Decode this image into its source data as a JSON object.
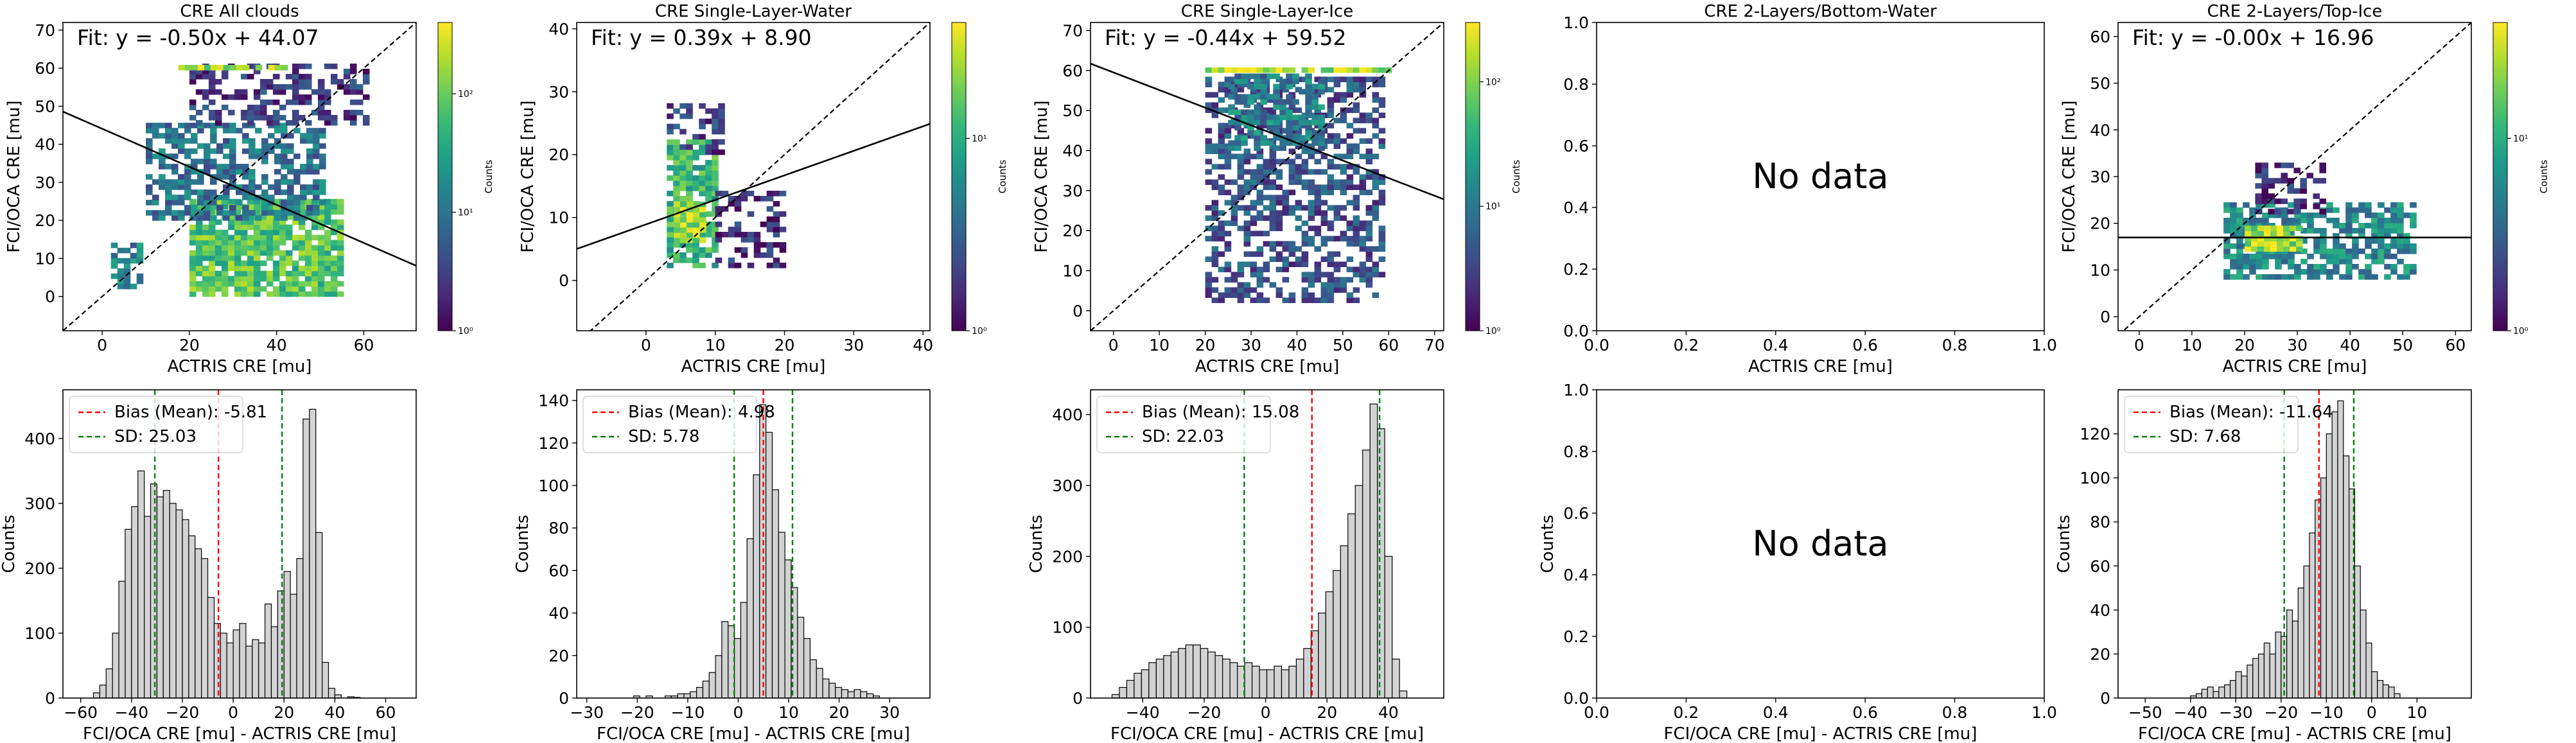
{
  "chart_data": [
    {
      "type": "heatmap",
      "title": "CRE All clouds",
      "xlabel": "ACTRIS CRE [mu]",
      "ylabel": "FCI/OCA CRE [mu]",
      "xlim": [
        -9,
        72
      ],
      "ylim": [
        -9,
        72
      ],
      "xticks": [
        0,
        20,
        40,
        60
      ],
      "yticks": [
        0,
        10,
        20,
        30,
        40,
        50,
        60,
        70
      ],
      "fit_label": "Fit: y = -0.50x + 44.07",
      "fit": {
        "slope": -0.5,
        "intercept": 44.07
      },
      "one_to_one": true,
      "colorbar": {
        "label": "Counts",
        "log": true,
        "min": 1,
        "max": 400,
        "ticks": [
          1,
          10,
          100
        ],
        "tick_labels": [
          "10⁰",
          "10¹",
          "10²"
        ]
      },
      "clusters": [
        {
          "x": [
            20,
            55
          ],
          "y": [
            0,
            25
          ],
          "density": 0.85
        },
        {
          "x": [
            10,
            50
          ],
          "y": [
            20,
            45
          ],
          "density": 0.45
        },
        {
          "x": [
            20,
            60
          ],
          "y": [
            45,
            60
          ],
          "density": 0.2
        },
        {
          "x": [
            2,
            8
          ],
          "y": [
            2,
            14
          ],
          "density": 0.5
        },
        {
          "x": [
            16,
            42
          ],
          "y": [
            59.5,
            60.5
          ],
          "density": 1.0
        }
      ]
    },
    {
      "type": "heatmap",
      "title": "CRE Single-Layer-Water",
      "xlabel": "ACTRIS CRE [mu]",
      "ylabel": "FCI/OCA CRE [mu]",
      "xlim": [
        -10,
        41
      ],
      "ylim": [
        -8,
        41
      ],
      "xticks": [
        0,
        10,
        20,
        30,
        40
      ],
      "yticks": [
        0,
        10,
        20,
        30,
        40
      ],
      "fit_label": "Fit: y = 0.39x + 8.90",
      "fit": {
        "slope": 0.39,
        "intercept": 8.9
      },
      "one_to_one": true,
      "colorbar": {
        "label": "Counts",
        "log": true,
        "min": 1,
        "max": 40,
        "ticks": [
          1,
          10
        ],
        "tick_labels": [
          "10⁰",
          "10¹"
        ]
      },
      "clusters": [
        {
          "x": [
            3,
            10
          ],
          "y": [
            2,
            22
          ],
          "density": 0.75
        },
        {
          "x": [
            4,
            8
          ],
          "y": [
            6,
            12
          ],
          "density": 1.0
        },
        {
          "x": [
            3,
            11
          ],
          "y": [
            20,
            28
          ],
          "density": 0.2
        },
        {
          "x": [
            10,
            20
          ],
          "y": [
            2,
            14
          ],
          "density": 0.15
        }
      ]
    },
    {
      "type": "heatmap",
      "title": "CRE Single-Layer-Ice",
      "xlabel": "ACTRIS CRE [mu]",
      "ylabel": "FCI/OCA CRE [mu]",
      "xlim": [
        -5,
        72
      ],
      "ylim": [
        -5,
        72
      ],
      "xticks": [
        0,
        10,
        20,
        30,
        40,
        50,
        60,
        70
      ],
      "yticks": [
        0,
        10,
        20,
        30,
        40,
        50,
        60,
        70
      ],
      "fit_label": "Fit: y = -0.44x + 59.52",
      "fit": {
        "slope": -0.44,
        "intercept": 59.52
      },
      "one_to_one": true,
      "colorbar": {
        "label": "Counts",
        "log": true,
        "min": 1,
        "max": 300,
        "ticks": [
          1,
          10,
          100
        ],
        "tick_labels": [
          "10⁰",
          "10¹",
          "10²"
        ]
      },
      "clusters": [
        {
          "x": [
            20,
            58
          ],
          "y": [
            2,
            58
          ],
          "density": 0.3
        },
        {
          "x": [
            25,
            45
          ],
          "y": [
            40,
            58
          ],
          "density": 0.5
        },
        {
          "x": [
            20,
            60
          ],
          "y": [
            59.5,
            60.5
          ],
          "density": 1.0
        }
      ]
    },
    {
      "type": "empty",
      "title": "CRE 2-Layers/Bottom-Water",
      "xlabel": "ACTRIS CRE [mu]",
      "ylabel": "",
      "xlim": [
        0,
        1
      ],
      "ylim": [
        0,
        1
      ],
      "xticks": [
        0.0,
        0.2,
        0.4,
        0.6,
        0.8,
        1.0
      ],
      "yticks": [
        0.0,
        0.2,
        0.4,
        0.6,
        0.8,
        1.0
      ],
      "message": "No data"
    },
    {
      "type": "heatmap",
      "title": "CRE 2-Layers/Top-Ice",
      "xlabel": "ACTRIS CRE [mu]",
      "ylabel": "FCI/OCA CRE [mu]",
      "xlim": [
        -4,
        63
      ],
      "ylim": [
        -3,
        63
      ],
      "xticks": [
        0,
        10,
        20,
        30,
        40,
        50,
        60
      ],
      "yticks": [
        0,
        10,
        20,
        30,
        40,
        50,
        60
      ],
      "fit_label": "Fit: y = -0.00x + 16.96",
      "fit": {
        "slope": 0.0,
        "intercept": 16.96
      },
      "one_to_one": true,
      "colorbar": {
        "label": "Counts",
        "log": true,
        "min": 1,
        "max": 40,
        "ticks": [
          1,
          10
        ],
        "tick_labels": [
          "10⁰",
          "10¹"
        ]
      },
      "clusters": [
        {
          "x": [
            16,
            52
          ],
          "y": [
            8,
            24
          ],
          "density": 0.55
        },
        {
          "x": [
            20,
            30
          ],
          "y": [
            14,
            19
          ],
          "density": 1.0
        },
        {
          "x": [
            22,
            35
          ],
          "y": [
            22,
            32
          ],
          "density": 0.15
        }
      ]
    },
    {
      "type": "bar",
      "subtype": "histogram",
      "title": "",
      "xlabel": "FCI/OCA CRE [mu] - ACTRIS CRE [mu]",
      "ylabel": "Counts",
      "xlim": [
        -67,
        72
      ],
      "ylim": [
        0,
        475
      ],
      "xticks": [
        -60,
        -40,
        -20,
        0,
        20,
        40,
        60
      ],
      "yticks": [
        0,
        100,
        200,
        300,
        400
      ],
      "bin_start": -55,
      "bin_width": 2.5,
      "counts": [
        8,
        20,
        45,
        100,
        180,
        260,
        295,
        350,
        280,
        330,
        310,
        320,
        300,
        290,
        275,
        250,
        230,
        215,
        155,
        115,
        100,
        85,
        105,
        115,
        80,
        90,
        85,
        145,
        110,
        165,
        195,
        160,
        215,
        430,
        445,
        255,
        55,
        15,
        5,
        0,
        2,
        1
      ],
      "bias": -5.81,
      "bias_label": "Bias (Mean): -5.81",
      "sd": 25.03,
      "sd_label": "SD: 25.03"
    },
    {
      "type": "bar",
      "subtype": "histogram",
      "title": "",
      "xlabel": "FCI/OCA CRE [mu] - ACTRIS CRE [mu]",
      "ylabel": "Counts",
      "xlim": [
        -32,
        38
      ],
      "ylim": [
        0,
        145
      ],
      "xticks": [
        -30,
        -20,
        -10,
        0,
        10,
        20,
        30
      ],
      "yticks": [
        0,
        20,
        40,
        60,
        80,
        100,
        120,
        140
      ],
      "bin_start": -22,
      "bin_width": 1.25,
      "counts": [
        0,
        1,
        0,
        1,
        0,
        0,
        1,
        1,
        2,
        2,
        3,
        5,
        8,
        12,
        20,
        36,
        34,
        28,
        45,
        75,
        105,
        138,
        125,
        98,
        78,
        65,
        52,
        38,
        28,
        18,
        14,
        9,
        7,
        5,
        4,
        3,
        4,
        3,
        2,
        1
      ],
      "bias": 4.98,
      "bias_label": "Bias (Mean): 4.98",
      "sd": 5.78,
      "sd_label": "SD: 5.78"
    },
    {
      "type": "bar",
      "subtype": "histogram",
      "title": "",
      "xlabel": "FCI/OCA CRE [mu] - ACTRIS CRE [mu]",
      "ylabel": "Counts",
      "xlim": [
        -57,
        58
      ],
      "ylim": [
        0,
        435
      ],
      "xticks": [
        -40,
        -20,
        0,
        20,
        40
      ],
      "yticks": [
        0,
        100,
        200,
        300,
        400
      ],
      "bin_start": -50,
      "bin_width": 2.4,
      "counts": [
        5,
        15,
        25,
        35,
        40,
        50,
        55,
        60,
        65,
        70,
        75,
        75,
        70,
        65,
        60,
        55,
        50,
        45,
        50,
        45,
        40,
        40,
        45,
        40,
        45,
        55,
        70,
        95,
        120,
        150,
        180,
        215,
        260,
        300,
        350,
        415,
        380,
        200,
        55,
        10
      ],
      "bias": 15.08,
      "bias_label": "Bias (Mean): 15.08",
      "sd": 22.03,
      "sd_label": "SD: 22.03"
    },
    {
      "type": "empty",
      "title": "",
      "xlabel": "FCI/OCA CRE [mu] - ACTRIS CRE [mu]",
      "ylabel": "Counts",
      "xlim": [
        0,
        1
      ],
      "ylim": [
        0,
        1
      ],
      "xticks": [
        0.0,
        0.2,
        0.4,
        0.6,
        0.8,
        1.0
      ],
      "yticks": [
        0.0,
        0.2,
        0.4,
        0.6,
        0.8,
        1.0
      ],
      "message": "No data"
    },
    {
      "type": "bar",
      "subtype": "histogram",
      "title": "",
      "xlabel": "FCI/OCA CRE [mu] - ACTRIS CRE [mu]",
      "ylabel": "Counts",
      "xlim": [
        -56,
        22
      ],
      "ylim": [
        0,
        140
      ],
      "xticks": [
        -50,
        -40,
        -30,
        -20,
        -10,
        0,
        10
      ],
      "yticks": [
        0,
        20,
        40,
        60,
        80,
        100,
        120
      ],
      "bin_start": -40,
      "bin_width": 1.25,
      "counts": [
        1,
        2,
        4,
        5,
        3,
        5,
        6,
        8,
        12,
        10,
        15,
        18,
        20,
        25,
        20,
        30,
        28,
        40,
        35,
        50,
        60,
        75,
        90,
        100,
        120,
        130,
        135,
        110,
        95,
        60,
        40,
        25,
        12,
        8,
        6,
        5,
        2
      ],
      "bias": -11.64,
      "bias_label": "Bias (Mean): -11.64",
      "sd": 7.68,
      "sd_label": "SD: 7.68"
    }
  ]
}
